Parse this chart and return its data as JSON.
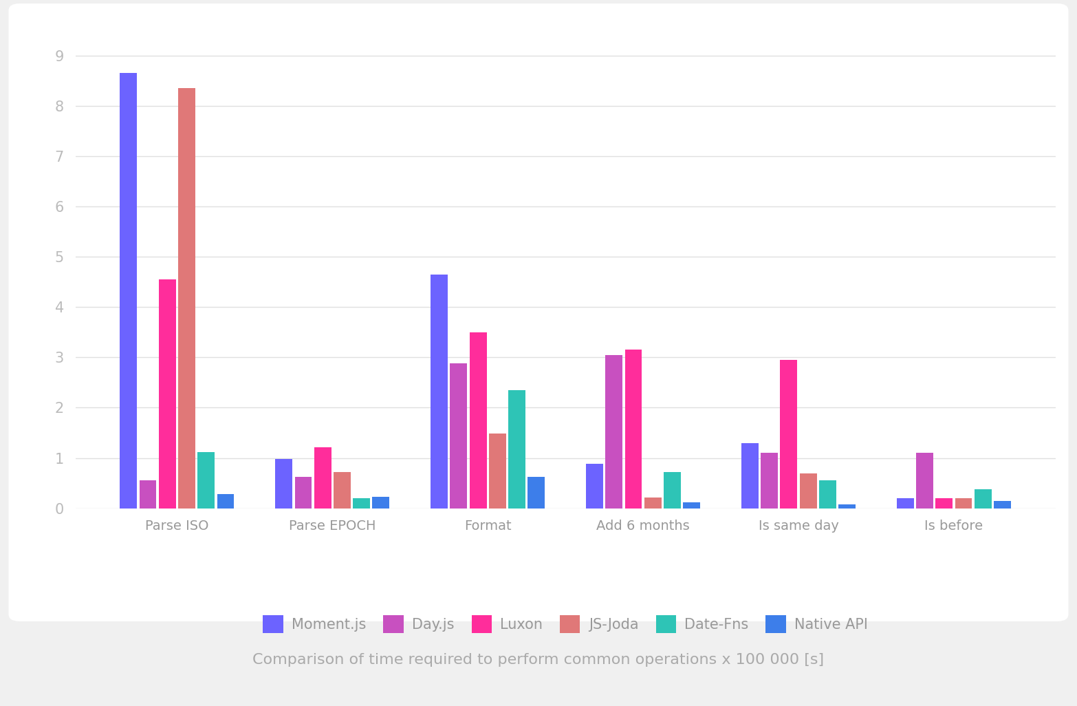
{
  "categories": [
    "Parse ISO",
    "Parse EPOCH",
    "Format",
    "Add 6 months",
    "Is same day",
    "Is before"
  ],
  "series_order": [
    "Moment.js",
    "Day.js",
    "Luxon",
    "JS-Joda",
    "Date-Fns",
    "Native API"
  ],
  "series": {
    "Moment.js": [
      8.65,
      0.98,
      4.65,
      0.88,
      1.3,
      0.2
    ],
    "Day.js": [
      0.55,
      0.62,
      2.88,
      3.05,
      1.1,
      1.1
    ],
    "Luxon": [
      4.55,
      1.22,
      3.5,
      3.15,
      2.95,
      0.2
    ],
    "JS-Joda": [
      8.35,
      0.72,
      1.48,
      0.22,
      0.7,
      0.2
    ],
    "Date-Fns": [
      1.12,
      0.2,
      2.35,
      0.72,
      0.55,
      0.38
    ],
    "Native API": [
      0.28,
      0.23,
      0.63,
      0.12,
      0.08,
      0.15
    ]
  },
  "colors": {
    "Moment.js": "#6C63FF",
    "Day.js": "#C850C0",
    "Luxon": "#FF2D9B",
    "JS-Joda": "#E07878",
    "Date-Fns": "#2EC4B6",
    "Native API": "#3D7EEA"
  },
  "ylim": [
    0,
    9.4
  ],
  "yticks": [
    0,
    1,
    2,
    3,
    4,
    5,
    6,
    7,
    8,
    9
  ],
  "fig_bg": "#f0f0f0",
  "card_bg": "#ffffff",
  "plot_bg": "#ffffff",
  "grid_color": "#e0e0e0",
  "axis_tick_color": "#bbbbbb",
  "xticklabel_color": "#999999",
  "caption": "Comparison of time required to perform common operations x 100 000 [s]",
  "caption_color": "#aaaaaa",
  "caption_fontsize": 16,
  "ytick_fontsize": 15,
  "xtick_fontsize": 14,
  "legend_fontsize": 15,
  "bar_width": 0.125
}
